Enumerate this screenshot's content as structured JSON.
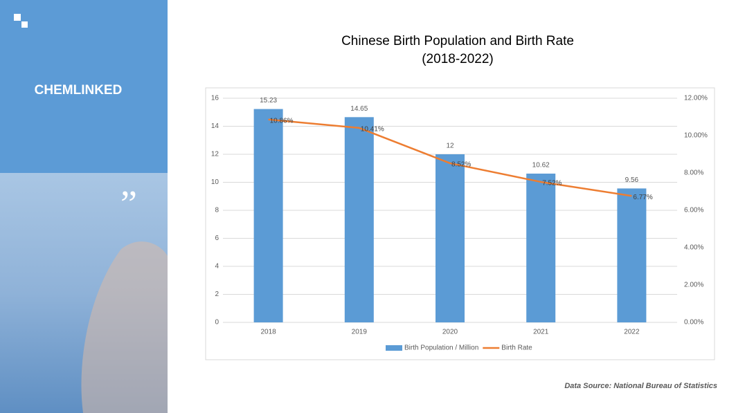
{
  "brand": "CHEMLINKED",
  "source": "Data Source: National Bureau of Statistics",
  "chart_data": {
    "type": "bar",
    "title": "Chinese Birth Population and Birth Rate",
    "subtitle": "(2018-2022)",
    "categories": [
      "2018",
      "2019",
      "2020",
      "2021",
      "2022"
    ],
    "series": [
      {
        "name": "Birth Population / Million",
        "type": "bar",
        "color": "#5b9bd5",
        "values": [
          15.23,
          14.65,
          12,
          10.62,
          9.56
        ]
      },
      {
        "name": "Birth Rate",
        "type": "line",
        "axis": "y2",
        "color": "#ed7d31",
        "values": [
          10.86,
          10.41,
          8.52,
          7.52,
          6.77
        ],
        "value_labels": [
          "10.86%",
          "10.41%",
          "8.52%",
          "7.52%",
          "6.77%"
        ]
      }
    ],
    "ylim": [
      0,
      16
    ],
    "yticks": [
      0,
      2,
      4,
      6,
      8,
      10,
      12,
      14,
      16
    ],
    "y2lim": [
      0,
      12
    ],
    "y2ticks": [
      {
        "value": 0,
        "label": "0.00%"
      },
      {
        "value": 2,
        "label": "2.00%"
      },
      {
        "value": 4,
        "label": "4.00%"
      },
      {
        "value": 6,
        "label": "6.00%"
      },
      {
        "value": 8,
        "label": "8.00%"
      },
      {
        "value": 10,
        "label": "10.00%"
      },
      {
        "value": 12,
        "label": "12.00%"
      }
    ],
    "grid": true,
    "legend": "bottom"
  }
}
